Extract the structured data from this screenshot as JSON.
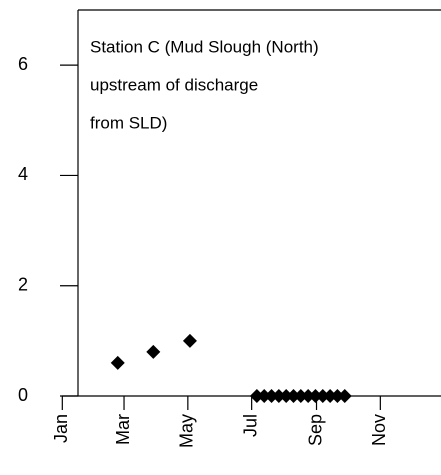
{
  "chart_data": {
    "type": "scatter",
    "annotation": [
      "Station C (Mud Slough (North)",
      "upstream of discharge",
      "from SLD)"
    ],
    "x": [
      53,
      87,
      122,
      186,
      193,
      200,
      207,
      214,
      221,
      228,
      235,
      242,
      249,
      256,
      263,
      270
    ],
    "values": [
      0.6,
      0.8,
      1.0,
      0,
      0,
      0,
      0,
      0,
      0,
      0,
      0,
      0,
      0,
      0,
      0,
      0
    ],
    "color": "#000000",
    "xlim": [
      15,
      362
    ],
    "xticks": [
      {
        "value": 0,
        "label": "Jan"
      },
      {
        "value": 59,
        "label": "Mar"
      },
      {
        "value": 120,
        "label": "May"
      },
      {
        "value": 181,
        "label": "Jul"
      },
      {
        "value": 243,
        "label": "Sep"
      },
      {
        "value": 304,
        "label": "Nov"
      }
    ],
    "ylim": [
      0,
      7
    ],
    "yticks": [
      0,
      2,
      4,
      6
    ]
  }
}
